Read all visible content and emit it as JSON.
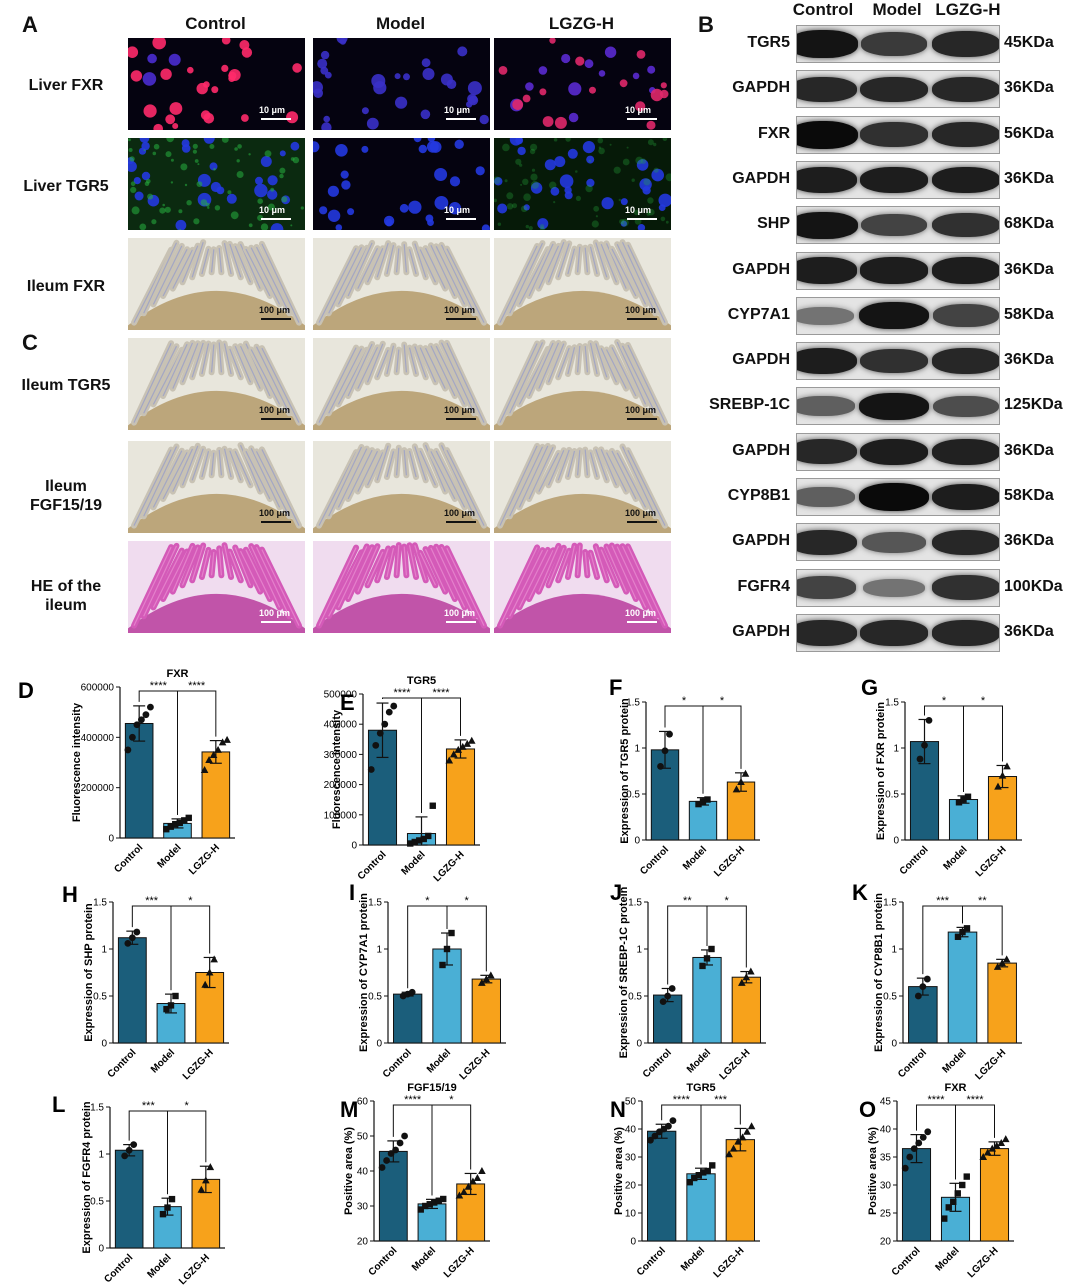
{
  "panel_letters": [
    "A",
    "B",
    "C",
    "D",
    "E",
    "F",
    "G",
    "H",
    "I",
    "J",
    "K",
    "L",
    "M",
    "N",
    "O"
  ],
  "group_names": [
    "Control",
    "Model",
    "LGZG-H"
  ],
  "micro_rows": [
    {
      "label": "Liver FXR",
      "scale": "10 μm",
      "kind": "fluor-red"
    },
    {
      "label": "Liver TGR5",
      "scale": "10 μm",
      "kind": "fluor-green"
    },
    {
      "label": "Ileum FXR",
      "scale": "100 μm",
      "kind": "ihc"
    },
    {
      "label": "Ileum TGR5",
      "scale": "100 μm",
      "kind": "ihc"
    },
    {
      "label": "Ileum FGF15/19",
      "scale": "100 μm",
      "kind": "ihc"
    },
    {
      "label": "HE of the ileum",
      "scale": "100 μm",
      "kind": "he"
    }
  ],
  "western_blot": [
    {
      "protein": "TGR5",
      "kda": "45KDa",
      "intensity": [
        0.95,
        0.75,
        0.85
      ]
    },
    {
      "protein": "GAPDH",
      "kda": "36KDa",
      "intensity": [
        0.85,
        0.85,
        0.85
      ]
    },
    {
      "protein": "FXR",
      "kda": "56KDa",
      "intensity": [
        1.0,
        0.8,
        0.85
      ]
    },
    {
      "protein": "GAPDH",
      "kda": "36KDa",
      "intensity": [
        0.9,
        0.9,
        0.9
      ]
    },
    {
      "protein": "SHP",
      "kda": "68KDa",
      "intensity": [
        0.95,
        0.7,
        0.8
      ]
    },
    {
      "protein": "GAPDH",
      "kda": "36KDa",
      "intensity": [
        0.9,
        0.9,
        0.9
      ]
    },
    {
      "protein": "CYP7A1",
      "kda": "58KDa",
      "intensity": [
        0.45,
        0.95,
        0.7
      ]
    },
    {
      "protein": "GAPDH",
      "kda": "36KDa",
      "intensity": [
        0.9,
        0.8,
        0.85
      ]
    },
    {
      "protein": "SREBP-1C",
      "kda": "125KDa",
      "intensity": [
        0.55,
        0.95,
        0.65
      ]
    },
    {
      "protein": "GAPDH",
      "kda": "36KDa",
      "intensity": [
        0.85,
        0.9,
        0.88
      ]
    },
    {
      "protein": "CYP8B1",
      "kda": "58KDa",
      "intensity": [
        0.55,
        1.0,
        0.9
      ]
    },
    {
      "protein": "GAPDH",
      "kda": "36KDa",
      "intensity": [
        0.85,
        0.6,
        0.85
      ]
    },
    {
      "protein": "FGFR4",
      "kda": "100KDa",
      "intensity": [
        0.7,
        0.45,
        0.8
      ]
    },
    {
      "protein": "GAPDH",
      "kda": "36KDa",
      "intensity": [
        0.85,
        0.85,
        0.85
      ]
    }
  ],
  "colors": {
    "Control": "#1b5e7b",
    "Model": "#4aafd5",
    "LGZG-H": "#f7a21b"
  },
  "chart_data": [
    {
      "panel": "D",
      "type": "bar",
      "title": "FXR",
      "ylabel": "Fluorescence intensity",
      "categories": [
        "Control",
        "Model",
        "LGZG-H"
      ],
      "values": [
        455000,
        58000,
        342000
      ],
      "sd": [
        70000,
        18000,
        45000
      ],
      "ylim": [
        0,
        600000
      ],
      "yticks": [
        0,
        200000,
        400000,
        600000
      ],
      "points": [
        [
          350000,
          400000,
          450000,
          470000,
          490000,
          520000
        ],
        [
          35000,
          45000,
          55000,
          60000,
          70000,
          80000
        ],
        [
          270000,
          310000,
          330000,
          350000,
          380000,
          390000
        ]
      ],
      "markers": [
        "circle",
        "square",
        "triangle"
      ],
      "sig": [
        {
          "a": 0,
          "b": 1,
          "text": "****",
          "level": 1
        },
        {
          "a": 1,
          "b": 2,
          "text": "****",
          "level": 1
        }
      ]
    },
    {
      "panel": "E",
      "type": "bar",
      "title": "TGR5",
      "ylabel": "Fluorescence intensity",
      "categories": [
        "Control",
        "Model",
        "LGZG-H"
      ],
      "values": [
        380000,
        38000,
        318000
      ],
      "sd": [
        90000,
        55000,
        30000
      ],
      "ylim": [
        0,
        500000
      ],
      "yticks": [
        0,
        100000,
        200000,
        300000,
        400000,
        500000
      ],
      "points": [
        [
          250000,
          330000,
          370000,
          400000,
          440000,
          460000
        ],
        [
          5000,
          10000,
          15000,
          20000,
          30000,
          130000
        ],
        [
          280000,
          300000,
          315000,
          325000,
          335000,
          345000
        ]
      ],
      "markers": [
        "circle",
        "square",
        "triangle"
      ],
      "sig": [
        {
          "a": 0,
          "b": 1,
          "text": "****",
          "level": 1
        },
        {
          "a": 1,
          "b": 2,
          "text": "****",
          "level": 1
        }
      ]
    },
    {
      "panel": "F",
      "type": "bar",
      "title": "",
      "ylabel": "Expression of TGR5 protein",
      "categories": [
        "Control",
        "Model",
        "LGZG-H"
      ],
      "values": [
        0.98,
        0.42,
        0.63
      ],
      "sd": [
        0.2,
        0.04,
        0.1
      ],
      "ylim": [
        0,
        1.5
      ],
      "yticks": [
        0.0,
        0.5,
        1.0,
        1.5
      ],
      "points": [
        [
          0.8,
          0.97,
          1.15
        ],
        [
          0.39,
          0.42,
          0.44
        ],
        [
          0.55,
          0.63,
          0.72
        ]
      ],
      "markers": [
        "circle",
        "square",
        "triangle"
      ],
      "sig": [
        {
          "a": 0,
          "b": 1,
          "text": "*",
          "level": 1
        },
        {
          "a": 1,
          "b": 2,
          "text": "*",
          "level": 1
        }
      ]
    },
    {
      "panel": "G",
      "type": "bar",
      "title": "",
      "ylabel": "Expression of FXR protein",
      "categories": [
        "Control",
        "Model",
        "LGZG-H"
      ],
      "values": [
        1.07,
        0.44,
        0.69
      ],
      "sd": [
        0.24,
        0.04,
        0.12
      ],
      "ylim": [
        0,
        1.5
      ],
      "yticks": [
        0.0,
        0.5,
        1.0,
        1.5
      ],
      "points": [
        [
          0.88,
          1.03,
          1.3
        ],
        [
          0.41,
          0.44,
          0.47
        ],
        [
          0.58,
          0.7,
          0.8
        ]
      ],
      "markers": [
        "circle",
        "square",
        "triangle"
      ],
      "sig": [
        {
          "a": 0,
          "b": 1,
          "text": "*",
          "level": 1
        },
        {
          "a": 1,
          "b": 2,
          "text": "*",
          "level": 1
        }
      ]
    },
    {
      "panel": "H",
      "type": "bar",
      "title": "",
      "ylabel": "Expression of SHP protein",
      "categories": [
        "Control",
        "Model",
        "LGZG-H"
      ],
      "values": [
        1.12,
        0.42,
        0.75
      ],
      "sd": [
        0.07,
        0.1,
        0.16
      ],
      "ylim": [
        0,
        1.5
      ],
      "yticks": [
        0.0,
        0.5,
        1.0,
        1.5
      ],
      "points": [
        [
          1.06,
          1.12,
          1.18
        ],
        [
          0.36,
          0.4,
          0.5
        ],
        [
          0.62,
          0.75,
          0.89
        ]
      ],
      "markers": [
        "circle",
        "square",
        "triangle"
      ],
      "sig": [
        {
          "a": 0,
          "b": 1,
          "text": "***",
          "level": 1
        },
        {
          "a": 1,
          "b": 2,
          "text": "*",
          "level": 1
        }
      ]
    },
    {
      "panel": "I",
      "type": "bar",
      "title": "",
      "ylabel": "Expression of CYP7A1 protein",
      "categories": [
        "Control",
        "Model",
        "LGZG-H"
      ],
      "values": [
        0.52,
        1.0,
        0.68
      ],
      "sd": [
        0.02,
        0.17,
        0.04
      ],
      "ylim": [
        0,
        1.5
      ],
      "yticks": [
        0.0,
        0.5,
        1.0,
        1.5
      ],
      "points": [
        [
          0.5,
          0.52,
          0.54
        ],
        [
          0.83,
          1.0,
          1.17
        ],
        [
          0.64,
          0.68,
          0.72
        ]
      ],
      "markers": [
        "circle",
        "square",
        "triangle"
      ],
      "sig": [
        {
          "a": 0,
          "b": 1,
          "text": "*",
          "level": 1
        },
        {
          "a": 1,
          "b": 2,
          "text": "*",
          "level": 1
        }
      ]
    },
    {
      "panel": "J",
      "type": "bar",
      "title": "",
      "ylabel": "Expression of SREBP-1C protein",
      "categories": [
        "Control",
        "Model",
        "LGZG-H"
      ],
      "values": [
        0.51,
        0.91,
        0.7
      ],
      "sd": [
        0.07,
        0.08,
        0.06
      ],
      "ylim": [
        0,
        1.5
      ],
      "yticks": [
        0.0,
        0.5,
        1.0,
        1.5
      ],
      "points": [
        [
          0.44,
          0.5,
          0.58
        ],
        [
          0.82,
          0.9,
          1.0
        ],
        [
          0.64,
          0.7,
          0.76
        ]
      ],
      "markers": [
        "circle",
        "square",
        "triangle"
      ],
      "sig": [
        {
          "a": 0,
          "b": 1,
          "text": "**",
          "level": 1
        },
        {
          "a": 1,
          "b": 2,
          "text": "*",
          "level": 1
        }
      ]
    },
    {
      "panel": "K",
      "type": "bar",
      "title": "",
      "ylabel": "Expression of CYP8B1 protein",
      "categories": [
        "Control",
        "Model",
        "LGZG-H"
      ],
      "values": [
        0.6,
        1.18,
        0.85
      ],
      "sd": [
        0.09,
        0.05,
        0.04
      ],
      "ylim": [
        0,
        1.5
      ],
      "yticks": [
        0.0,
        0.5,
        1.0,
        1.5
      ],
      "points": [
        [
          0.5,
          0.6,
          0.68
        ],
        [
          1.13,
          1.18,
          1.22
        ],
        [
          0.81,
          0.85,
          0.89
        ]
      ],
      "markers": [
        "circle",
        "square",
        "triangle"
      ],
      "sig": [
        {
          "a": 0,
          "b": 1,
          "text": "***",
          "level": 1
        },
        {
          "a": 1,
          "b": 2,
          "text": "**",
          "level": 1
        }
      ]
    },
    {
      "panel": "L",
      "type": "bar",
      "title": "",
      "ylabel": "Expression of FGFR4 protein",
      "categories": [
        "Control",
        "Model",
        "LGZG-H"
      ],
      "values": [
        1.04,
        0.44,
        0.73
      ],
      "sd": [
        0.06,
        0.09,
        0.14
      ],
      "ylim": [
        0,
        1.5
      ],
      "yticks": [
        0.0,
        0.5,
        1.0,
        1.5
      ],
      "points": [
        [
          0.98,
          1.04,
          1.1
        ],
        [
          0.36,
          0.43,
          0.52
        ],
        [
          0.62,
          0.72,
          0.86
        ]
      ],
      "markers": [
        "circle",
        "square",
        "triangle"
      ],
      "sig": [
        {
          "a": 0,
          "b": 1,
          "text": "***",
          "level": 1
        },
        {
          "a": 1,
          "b": 2,
          "text": "*",
          "level": 1
        }
      ]
    },
    {
      "panel": "M",
      "type": "bar",
      "title": "FGF15/19",
      "ylabel": "Positive area (%)",
      "categories": [
        "Control",
        "Model",
        "LGZG-H"
      ],
      "values": [
        45.6,
        30.6,
        36.3
      ],
      "sd": [
        3.0,
        1.3,
        3.0
      ],
      "ylim": [
        20,
        60
      ],
      "yticks": [
        20,
        30,
        40,
        50,
        60
      ],
      "points": [
        [
          41,
          43,
          45,
          46,
          48,
          50
        ],
        [
          29,
          30,
          30.5,
          31,
          31.5,
          32
        ],
        [
          33,
          34,
          35.5,
          37,
          38,
          40
        ]
      ],
      "markers": [
        "circle",
        "square",
        "triangle"
      ],
      "sig": [
        {
          "a": 0,
          "b": 1,
          "text": "****",
          "level": 1
        },
        {
          "a": 1,
          "b": 2,
          "text": "*",
          "level": 1
        }
      ]
    },
    {
      "panel": "N",
      "type": "bar",
      "title": "TGR5",
      "ylabel": "Positive area (%)",
      "categories": [
        "Control",
        "Model",
        "LGZG-H"
      ],
      "values": [
        39.2,
        24.0,
        36.2
      ],
      "sd": [
        2.5,
        2.0,
        4.0
      ],
      "ylim": [
        0,
        50
      ],
      "yticks": [
        0,
        10,
        20,
        30,
        40,
        50
      ],
      "points": [
        [
          36,
          37.5,
          39,
          40,
          41,
          43
        ],
        [
          21,
          22.5,
          23.5,
          24.5,
          25,
          27
        ],
        [
          31,
          33,
          35.5,
          37,
          39,
          41
        ]
      ],
      "markers": [
        "circle",
        "square",
        "triangle"
      ],
      "sig": [
        {
          "a": 0,
          "b": 1,
          "text": "****",
          "level": 1
        },
        {
          "a": 1,
          "b": 2,
          "text": "***",
          "level": 1
        }
      ]
    },
    {
      "panel": "O",
      "type": "bar",
      "title": "FXR",
      "ylabel": "Positive area (%)",
      "categories": [
        "Control",
        "Model",
        "LGZG-H"
      ],
      "values": [
        36.5,
        27.8,
        36.5
      ],
      "sd": [
        2.5,
        2.5,
        1.2
      ],
      "ylim": [
        20,
        45
      ],
      "yticks": [
        20,
        25,
        30,
        35,
        40,
        45
      ],
      "points": [
        [
          33,
          35,
          36.5,
          37.5,
          38.5,
          39.5
        ],
        [
          24,
          26,
          27,
          28.5,
          30,
          31.5
        ],
        [
          35,
          35.8,
          36.5,
          37,
          37.5,
          38.2
        ]
      ],
      "markers": [
        "circle",
        "square",
        "triangle"
      ],
      "sig": [
        {
          "a": 0,
          "b": 1,
          "text": "****",
          "level": 1
        },
        {
          "a": 1,
          "b": 2,
          "text": "****",
          "level": 1
        }
      ]
    }
  ]
}
